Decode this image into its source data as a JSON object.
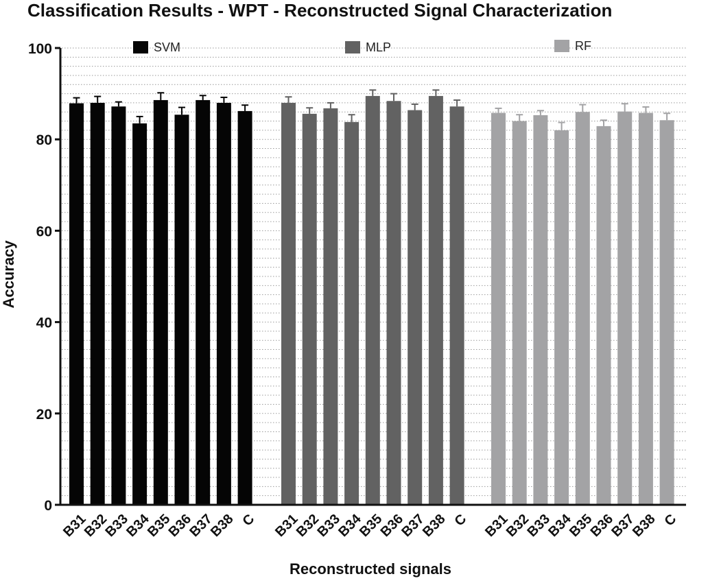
{
  "chart_data": {
    "type": "bar",
    "title": "Classification Results  - WPT - Reconstructed Signal Characterization",
    "xlabel": "Reconstructed signals",
    "ylabel": "Accuracy",
    "ylim": [
      0,
      100
    ],
    "yticks": [
      0,
      20,
      40,
      60,
      80,
      100
    ],
    "grid": "horizontal dotted",
    "legend_placement": "top",
    "categories": [
      "B31",
      "B32",
      "B33",
      "B34",
      "B35",
      "B36",
      "B37",
      "B38",
      "C"
    ],
    "series": [
      {
        "name": "SVM",
        "color": "#050505",
        "values": [
          87.9,
          88.0,
          87.2,
          83.5,
          88.6,
          85.4,
          88.6,
          88.0,
          86.2
        ],
        "errors": [
          1.2,
          1.4,
          1.0,
          1.5,
          1.6,
          1.6,
          1.0,
          1.2,
          1.3
        ]
      },
      {
        "name": "MLP",
        "color": "#626262",
        "values": [
          88.0,
          85.6,
          86.8,
          83.8,
          89.5,
          88.4,
          86.4,
          89.5,
          87.2
        ],
        "errors": [
          1.3,
          1.3,
          1.2,
          1.6,
          1.3,
          1.6,
          1.3,
          1.3,
          1.4
        ]
      },
      {
        "name": "RF",
        "color": "#a3a3a5",
        "values": [
          85.8,
          84.0,
          85.3,
          82.0,
          86.0,
          82.9,
          86.1,
          85.8,
          84.2
        ],
        "errors": [
          1.0,
          1.4,
          1.0,
          1.7,
          1.6,
          1.3,
          1.7,
          1.3,
          1.5
        ]
      }
    ]
  }
}
